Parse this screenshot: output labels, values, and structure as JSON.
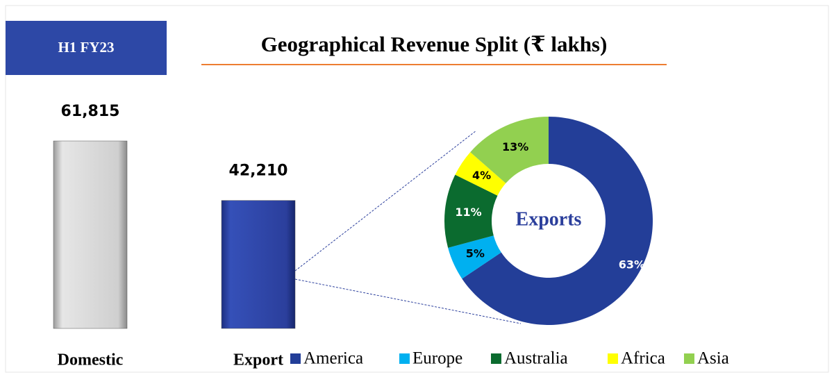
{
  "header": {
    "badge": "H1 FY23",
    "title": "Geographical Revenue Split (₹ lakhs)"
  },
  "chart_data": [
    {
      "type": "bar",
      "categories": [
        "Domestic",
        "Export"
      ],
      "values": [
        61815,
        42210
      ],
      "value_labels": [
        "61,815",
        "42,210"
      ],
      "colors": [
        "#c4c4c4",
        "#2b3f9c"
      ]
    },
    {
      "type": "pie",
      "center_label": "Exports",
      "categories": [
        "America",
        "Europe",
        "Australia",
        "Africa",
        "Asia"
      ],
      "values": [
        63,
        5,
        11,
        4,
        13
      ],
      "value_labels": [
        "63%",
        "5%",
        "11%",
        "4%",
        "13%"
      ],
      "colors": [
        "#233e98",
        "#00b0f0",
        "#0b6b2f",
        "#ffff00",
        "#92d050"
      ],
      "label_colors": [
        "#ffffff",
        "#000000",
        "#ffffff",
        "#000000",
        "#000000"
      ],
      "legend": "bottom"
    }
  ]
}
